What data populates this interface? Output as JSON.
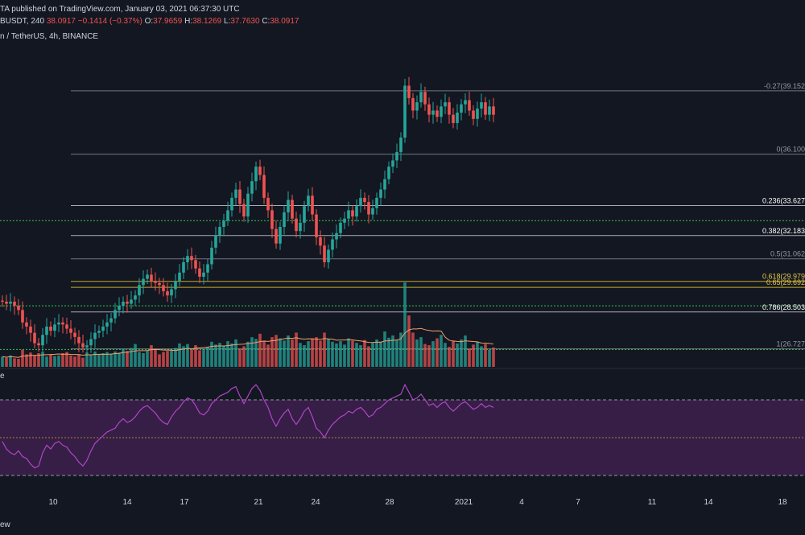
{
  "header": {
    "publish_line": "TA published on TradingView.com, January 03, 2021 06:37:30 UTC",
    "ohlc": {
      "symbol": "BUSDT, 240",
      "price": "38.0917",
      "change": "−0.1414 (−0.37%)",
      "open_label": "O:",
      "open": "37.9659",
      "high_label": "H:",
      "high": "38.1269",
      "low_label": "L:",
      "low": "37.7630",
      "close_label": "C:",
      "close": "38.0917"
    }
  },
  "symbol_line": "n / TetherUS, 4h, BINANCE",
  "rsi_label": "e",
  "footer_label": "ew",
  "colors": {
    "bg": "#131722",
    "up": "#26a69a",
    "down": "#ef5350",
    "fib": "#b2b5be",
    "fib_gold": "#c9b02c",
    "green_dotted": "#2ecc40",
    "rsi_line": "#b145c8",
    "rsi_band": "#3b1f4a"
  },
  "chart_data": {
    "type": "candlestick",
    "price_range": [
      25.9,
      41.2
    ],
    "fib_levels": [
      {
        "label": "-0.27(39.152",
        "value": 39.152,
        "bold": false
      },
      {
        "label": "0(36.100",
        "value": 36.1,
        "bold": false
      },
      {
        "label": "0.236(33.627",
        "value": 33.627,
        "bold": true
      },
      {
        "label": "0.382(32.183",
        "value": 32.183,
        "bold": true
      },
      {
        "label": "0.5(31.062",
        "value": 31.062,
        "bold": false
      },
      {
        "label": "0.618(29.979",
        "value": 29.979,
        "bold": true,
        "gold": true
      },
      {
        "label": "0.65(29.692",
        "value": 29.692,
        "bold": false,
        "gold": true
      },
      {
        "label": "0.786(28.503",
        "value": 28.503,
        "bold": true
      },
      {
        "label": "1(26.727",
        "value": 26.727,
        "bold": false
      }
    ],
    "support_lines": [
      32.9,
      28.8,
      26.7
    ],
    "x_ticks": [
      "10",
      "14",
      "17",
      "21",
      "24",
      "28",
      "2021",
      "4",
      "7",
      "11",
      "14",
      "18"
    ],
    "closes": [
      29.0,
      28.9,
      29.0,
      28.8,
      28.6,
      28.0,
      27.8,
      27.5,
      27.0,
      26.9,
      27.4,
      27.8,
      27.6,
      27.9,
      28.0,
      27.9,
      27.7,
      27.5,
      27.3,
      27.0,
      26.8,
      26.9,
      27.2,
      27.5,
      27.6,
      27.8,
      28.0,
      28.2,
      28.6,
      28.8,
      29.0,
      28.9,
      29.1,
      29.3,
      29.8,
      30.1,
      30.3,
      30.0,
      29.9,
      29.8,
      29.5,
      29.3,
      29.6,
      30.0,
      30.4,
      30.9,
      31.2,
      31.0,
      30.6,
      30.2,
      30.4,
      30.8,
      31.6,
      32.2,
      32.6,
      32.9,
      33.4,
      34.0,
      34.4,
      33.7,
      33.1,
      34.2,
      34.8,
      35.5,
      35.1,
      34.0,
      33.4,
      32.5,
      31.8,
      32.6,
      33.3,
      33.9,
      33.0,
      32.4,
      32.8,
      33.6,
      34.1,
      33.2,
      32.1,
      31.7,
      30.9,
      31.5,
      32.0,
      32.3,
      32.8,
      33.0,
      33.4,
      33.1,
      33.6,
      34.0,
      33.8,
      33.2,
      33.5,
      34.0,
      34.4,
      34.9,
      35.5,
      35.8,
      36.2,
      36.9,
      39.4,
      38.8,
      38.2,
      38.6,
      39.1,
      38.5,
      38.0,
      38.2,
      37.9,
      38.4,
      38.6,
      38.0,
      37.6,
      38.1,
      38.5,
      38.7,
      38.2,
      37.8,
      38.3,
      38.6,
      38.0,
      38.4,
      38.0
    ],
    "volumes": [
      18,
      16,
      20,
      15,
      14,
      30,
      22,
      25,
      20,
      24,
      26,
      18,
      22,
      19,
      20,
      24,
      26,
      20,
      18,
      22,
      16,
      25,
      21,
      27,
      22,
      24,
      26,
      23,
      27,
      25,
      32,
      28,
      33,
      40,
      26,
      24,
      28,
      38,
      30,
      22,
      26,
      28,
      30,
      33,
      41,
      36,
      40,
      32,
      38,
      29,
      31,
      35,
      44,
      39,
      42,
      37,
      45,
      41,
      48,
      32,
      36,
      44,
      52,
      49,
      58,
      46,
      39,
      52,
      56,
      50,
      46,
      55,
      48,
      60,
      42,
      38,
      45,
      50,
      52,
      46,
      60,
      49,
      44,
      41,
      45,
      39,
      50,
      46,
      42,
      38,
      47,
      36,
      42,
      48,
      44,
      62,
      51,
      55,
      47,
      60,
      148,
      90,
      60,
      48,
      52,
      40,
      38,
      45,
      50,
      56,
      42,
      35,
      46,
      41,
      48,
      55,
      32,
      39,
      44,
      36,
      40,
      30,
      34
    ],
    "rsi": [
      48,
      44,
      42,
      41,
      43,
      40,
      39,
      36,
      34,
      35,
      42,
      46,
      44,
      47,
      48,
      46,
      45,
      42,
      40,
      37,
      35,
      38,
      43,
      47,
      49,
      51,
      53,
      54,
      55,
      58,
      60,
      58,
      59,
      61,
      64,
      66,
      67,
      65,
      63,
      60,
      58,
      57,
      61,
      64,
      66,
      69,
      71,
      70,
      67,
      63,
      62,
      64,
      68,
      70,
      72,
      73,
      74,
      76,
      77,
      72,
      68,
      72,
      76,
      78,
      75,
      70,
      66,
      60,
      56,
      60,
      63,
      65,
      60,
      57,
      60,
      64,
      66,
      61,
      55,
      53,
      50,
      54,
      57,
      59,
      61,
      62,
      64,
      63,
      65,
      66,
      64,
      61,
      62,
      65,
      66,
      68,
      70,
      71,
      72,
      73,
      78,
      74,
      70,
      71,
      73,
      70,
      67,
      68,
      66,
      68,
      69,
      66,
      64,
      66,
      68,
      69,
      67,
      65,
      66,
      68,
      66,
      67,
      66
    ]
  }
}
